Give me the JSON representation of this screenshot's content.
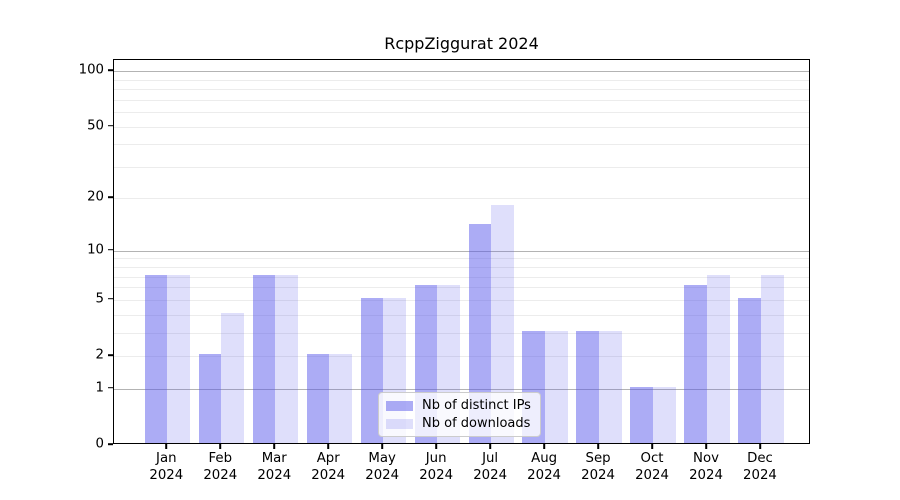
{
  "title": "RcppZiggurat 2024",
  "legend": {
    "items": [
      {
        "label": "Nb of distinct IPs",
        "color": "#5555EB7D"
      },
      {
        "label": "Nb of downloads",
        "color": "#5555EB30"
      }
    ]
  },
  "axes": {
    "y_tick_labels": [
      "100",
      "50",
      "20",
      "10",
      "5",
      "2",
      "1",
      "0"
    ],
    "x_tick_year": "2024",
    "x_tick_months": [
      "Jan",
      "Feb",
      "Mar",
      "Apr",
      "May",
      "Jun",
      "Jul",
      "Aug",
      "Sep",
      "Oct",
      "Nov",
      "Dec"
    ]
  },
  "chart_data": {
    "type": "bar",
    "title": "RcppZiggurat 2024",
    "categories": [
      "Jan 2024",
      "Feb 2024",
      "Mar 2024",
      "Apr 2024",
      "May 2024",
      "Jun 2024",
      "Jul 2024",
      "Aug 2024",
      "Sep 2024",
      "Oct 2024",
      "Nov 2024",
      "Dec 2024"
    ],
    "series": [
      {
        "name": "Nb of distinct IPs",
        "color": "#5555EB7D",
        "values": [
          7,
          2,
          7,
          2,
          5,
          6,
          14,
          3,
          3,
          1,
          6,
          5
        ]
      },
      {
        "name": "Nb of downloads",
        "color": "#5555EB30",
        "values": [
          7,
          4,
          7,
          2,
          5,
          6,
          18,
          3,
          3,
          1,
          7,
          7
        ]
      }
    ],
    "xlabel": "",
    "ylabel": "",
    "yscale": "log1p",
    "ylim": [
      0,
      115
    ],
    "yticks": [
      0,
      1,
      2,
      5,
      10,
      20,
      50,
      100
    ],
    "grid": "horizontal",
    "gridlines_major": [
      1,
      10,
      100
    ],
    "gridlines_minor": [
      2,
      3,
      4,
      5,
      6,
      7,
      8,
      9,
      20,
      30,
      40,
      50,
      60,
      70,
      80,
      90
    ],
    "legend_position": "lower center",
    "colors": {
      "major_grid": "#b3b3b3",
      "minor_grid": "#ececec",
      "spine": "#000000",
      "text": "#000000"
    }
  }
}
